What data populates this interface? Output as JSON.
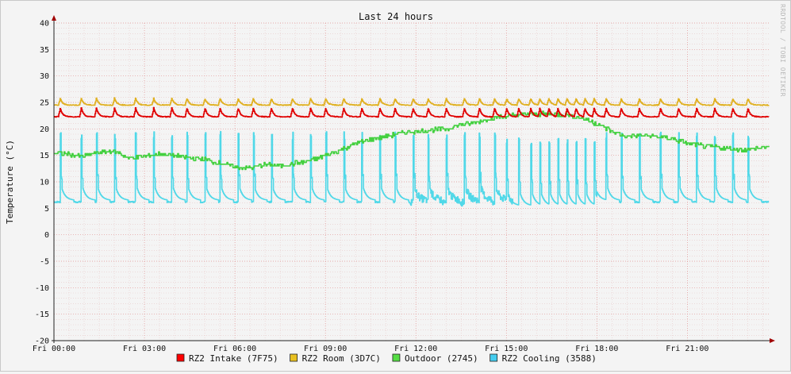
{
  "chart_data": {
    "type": "line",
    "title": "Last 24 hours",
    "ylabel": "Temperature (°C)",
    "xlabel": "",
    "ylim": [
      -20,
      40
    ],
    "xlim_hours": [
      0,
      23.7
    ],
    "yticks": [
      40,
      35,
      30,
      25,
      20,
      15,
      10,
      5,
      0,
      -5,
      -10,
      -15,
      -20
    ],
    "xticks": [
      {
        "label": "Fri 00:00",
        "hour": 0
      },
      {
        "label": "Fri 03:00",
        "hour": 3
      },
      {
        "label": "Fri 06:00",
        "hour": 6
      },
      {
        "label": "Fri 09:00",
        "hour": 9
      },
      {
        "label": "Fri 12:00",
        "hour": 12
      },
      {
        "label": "Fri 15:00",
        "hour": 15
      },
      {
        "label": "Fri 18:00",
        "hour": 18
      },
      {
        "label": "Fri 21:00",
        "hour": 21
      }
    ],
    "grid": true,
    "legend_position": "bottom",
    "credit": "RRDTOOL / TOBI OETIKER",
    "series": [
      {
        "name": "RZ2 Intake (7F75)",
        "color": "#ff0000",
        "line": "#e00000",
        "type": "sawtooth",
        "base": 22.3,
        "peak": 24.0,
        "spikes": [
          0.2,
          0.9,
          1.4,
          2.0,
          2.7,
          3.3,
          3.9,
          4.4,
          5.0,
          5.5,
          6.1,
          6.6,
          7.2,
          7.9,
          8.5,
          9.0,
          9.6,
          10.2,
          10.8,
          11.3,
          11.9,
          12.4,
          13.0,
          13.6,
          14.1,
          14.6,
          15.0,
          15.4,
          15.8,
          16.1,
          16.4,
          16.7,
          17.0,
          17.3,
          17.6,
          17.9,
          18.3,
          18.8,
          19.4,
          20.1,
          20.7,
          21.3,
          21.9,
          22.5,
          23.0
        ]
      },
      {
        "name": "RZ2 Room (3D7C)",
        "color": "#e8c020",
        "line": "#e0b020",
        "type": "sawtooth",
        "base": 24.5,
        "peak": 25.8,
        "spikes": [
          0.2,
          0.9,
          1.4,
          2.0,
          2.7,
          3.3,
          3.9,
          4.4,
          5.0,
          5.5,
          6.1,
          6.6,
          7.2,
          7.9,
          8.5,
          9.0,
          9.6,
          10.2,
          10.8,
          11.3,
          11.9,
          12.4,
          13.0,
          13.6,
          14.1,
          14.6,
          15.0,
          15.4,
          15.8,
          16.1,
          16.4,
          16.7,
          17.0,
          17.3,
          17.6,
          17.9,
          18.3,
          18.8,
          19.4,
          20.1,
          20.7,
          21.3,
          21.9,
          22.5,
          23.0
        ]
      },
      {
        "name": "Outdoor (2745)",
        "color": "#55dd44",
        "line": "#44d040",
        "type": "curve",
        "x": [
          0,
          0.5,
          1,
          1.5,
          2,
          2.5,
          3,
          3.5,
          4,
          4.5,
          5,
          5.5,
          6,
          6.5,
          7,
          7.5,
          8,
          8.5,
          9,
          9.5,
          10,
          10.5,
          11,
          11.5,
          12,
          12.5,
          13,
          13.5,
          14,
          14.5,
          15,
          15.5,
          16,
          16.5,
          17,
          17.5,
          18,
          18.5,
          19,
          19.5,
          20,
          20.5,
          21,
          21.5,
          22,
          22.5,
          23,
          23.7
        ],
        "y": [
          15.5,
          15.2,
          14.8,
          15.6,
          15.8,
          14.5,
          14.8,
          15.3,
          15.0,
          14.5,
          14.2,
          13.5,
          12.8,
          12.6,
          13.2,
          13.0,
          13.5,
          14.0,
          15.0,
          16.0,
          17.2,
          18.0,
          18.6,
          19.2,
          19.5,
          19.8,
          20.0,
          20.8,
          21.3,
          22.0,
          22.4,
          22.7,
          22.8,
          22.9,
          22.6,
          22.0,
          21.0,
          19.5,
          18.5,
          18.8,
          18.5,
          18.2,
          17.2,
          16.8,
          16.5,
          16.2,
          16.0,
          16.8
        ]
      },
      {
        "name": "RZ2 Cooling (3588)",
        "color": "#44ccee",
        "line": "#50d8e8",
        "type": "cooling",
        "base": 6.5,
        "peak": 19.5,
        "noisy_from": 11.8,
        "noisy_to": 15.2,
        "spikes": [
          0.2,
          0.9,
          1.4,
          2.0,
          2.7,
          3.3,
          3.9,
          4.4,
          5.0,
          5.5,
          6.1,
          6.6,
          7.2,
          7.9,
          8.5,
          9.0,
          9.6,
          10.2,
          10.8,
          11.3,
          11.9,
          12.4,
          13.0,
          13.6,
          14.1,
          14.6,
          15.0,
          15.4,
          15.8,
          16.1,
          16.4,
          16.7,
          17.0,
          17.3,
          17.6,
          17.9,
          18.3,
          18.8,
          19.4,
          20.1,
          20.7,
          21.3,
          21.9,
          22.5,
          23.0
        ]
      }
    ]
  }
}
